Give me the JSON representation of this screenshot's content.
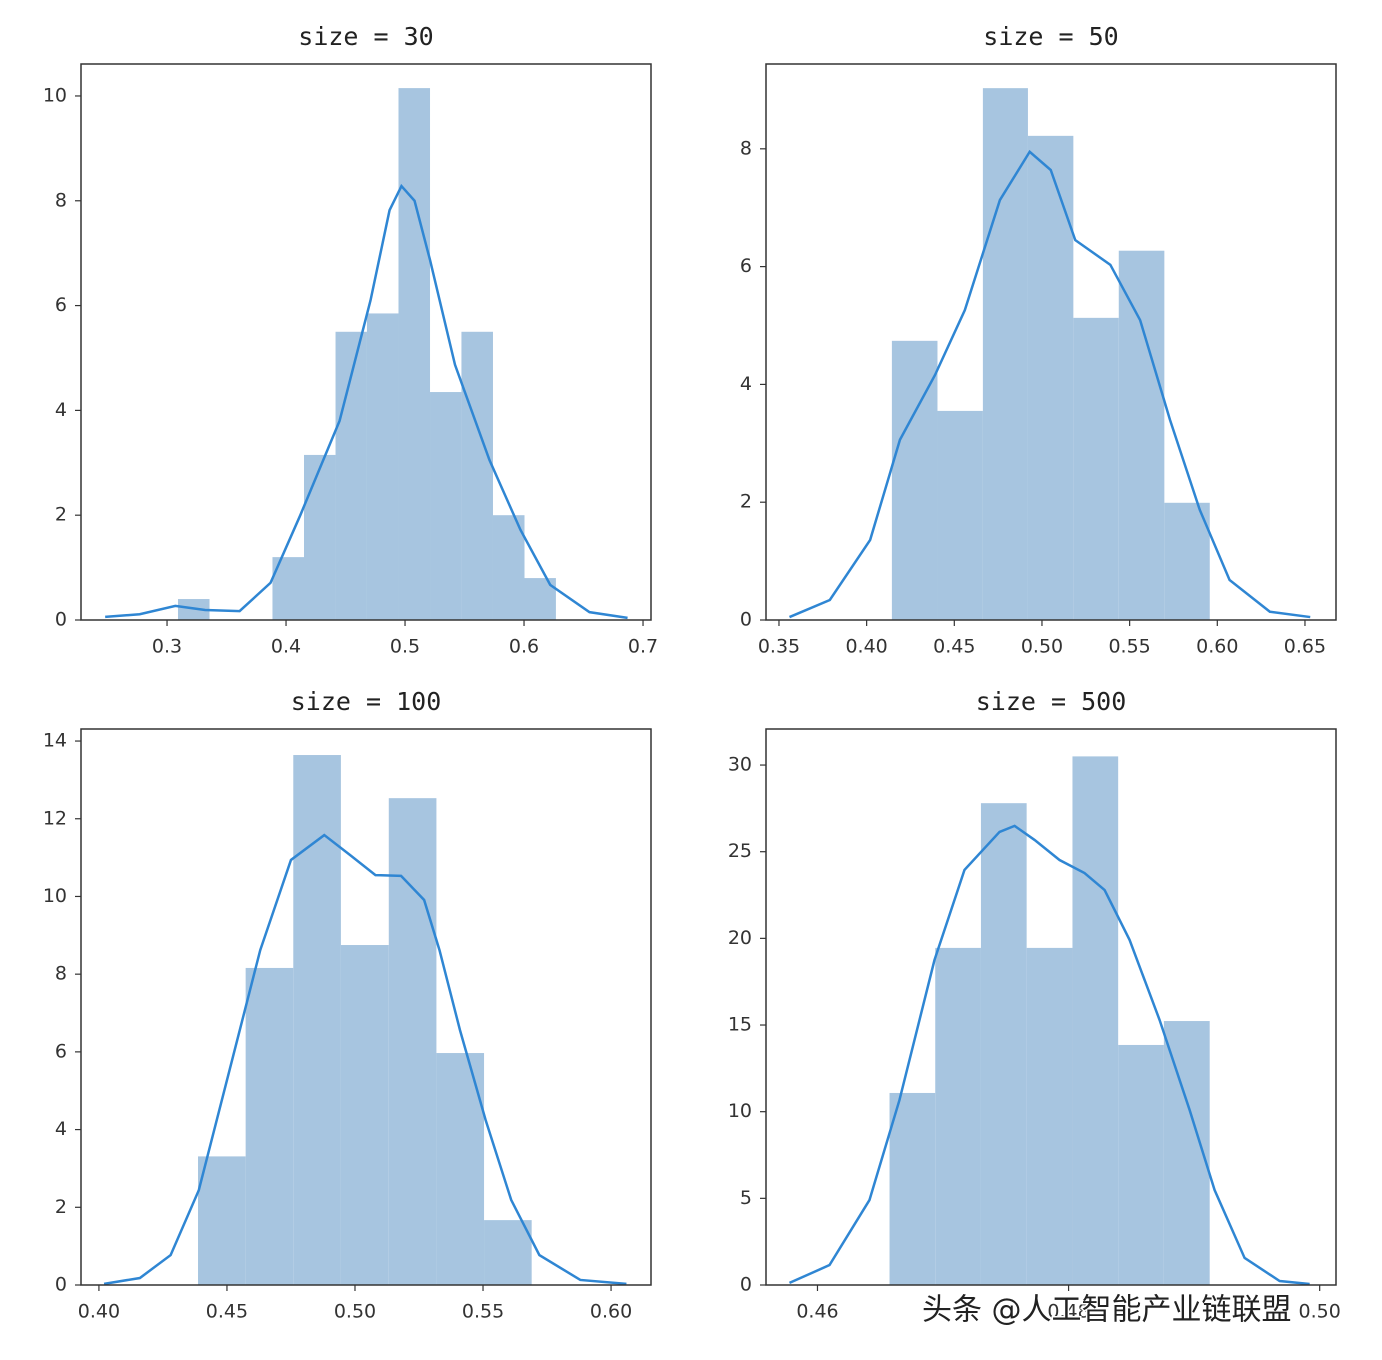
{
  "chart_data": [
    {
      "type": "histogram",
      "title": "size = 30",
      "color": "#a7c5e0",
      "bins": [
        0.3092,
        0.3357,
        0.3622,
        0.3886,
        0.4151,
        0.4416,
        0.468,
        0.4945,
        0.521,
        0.5474,
        0.5739,
        0.6004,
        0.6268
      ],
      "values": [
        0.4,
        0,
        0,
        1.2,
        3.15,
        5.5,
        5.85,
        10.15,
        4.35,
        5.5,
        2.0,
        0.8
      ],
      "kde": {
        "color": "#2f86d3",
        "x": [
          0.248,
          0.277,
          0.307,
          0.332,
          0.361,
          0.387,
          0.412,
          0.445,
          0.471,
          0.487,
          0.497,
          0.508,
          0.521,
          0.542,
          0.571,
          0.597,
          0.622,
          0.655,
          0.687
        ],
        "values": [
          0.06,
          0.11,
          0.27,
          0.19,
          0.17,
          0.71,
          2.0,
          3.8,
          6.1,
          7.82,
          8.28,
          8.0,
          6.87,
          4.87,
          3.05,
          1.72,
          0.67,
          0.15,
          0.04
        ]
      },
      "xlim": [
        0.2277,
        0.7067
      ],
      "ylim": [
        0,
        10.61
      ],
      "xticks": [
        0.3,
        0.4,
        0.5,
        0.6,
        0.7
      ],
      "yticks": [
        0,
        2,
        4,
        6,
        8,
        10
      ]
    },
    {
      "type": "histogram",
      "title": "size = 50",
      "color": "#a7c5e0",
      "bins": [
        0.4144,
        0.4404,
        0.4663,
        0.492,
        0.5179,
        0.5438,
        0.5698,
        0.5957
      ],
      "values": [
        4.74,
        3.55,
        9.03,
        8.22,
        5.13,
        6.27,
        1.99
      ],
      "kde": {
        "color": "#2f86d3",
        "x": [
          0.356,
          0.379,
          0.402,
          0.419,
          0.439,
          0.456,
          0.476,
          0.493,
          0.505,
          0.519,
          0.539,
          0.556,
          0.573,
          0.59,
          0.607,
          0.63,
          0.653
        ],
        "values": [
          0.05,
          0.34,
          1.36,
          3.06,
          4.16,
          5.26,
          7.13,
          7.95,
          7.64,
          6.45,
          6.03,
          5.09,
          3.4,
          1.87,
          0.68,
          0.14,
          0.05
        ]
      },
      "xlim": [
        0.3426,
        0.6677
      ],
      "ylim": [
        0,
        9.44
      ],
      "xticks": [
        0.35,
        {
          "value": 0.4,
          "label": "0.40"
        },
        0.45,
        {
          "value": 0.5,
          "label": "0.50"
        },
        0.55,
        {
          "value": 0.6,
          "label": "0.60"
        },
        0.65
      ],
      "yticks": [
        0,
        2,
        4,
        6,
        8
      ]
    },
    {
      "type": "histogram",
      "title": "size = 100",
      "color": "#a7c5e0",
      "bins": [
        0.4387,
        0.4573,
        0.4759,
        0.4945,
        0.5132,
        0.5318,
        0.5504,
        0.569
      ],
      "values": [
        3.31,
        8.16,
        13.64,
        8.75,
        12.53,
        5.97,
        1.67
      ],
      "kde": {
        "color": "#2f86d3",
        "x": [
          0.402,
          0.416,
          0.428,
          0.439,
          0.451,
          0.463,
          0.475,
          0.488,
          0.498,
          0.508,
          0.518,
          0.527,
          0.533,
          0.541,
          0.551,
          0.561,
          0.572,
          0.588,
          0.606
        ],
        "values": [
          0.03,
          0.18,
          0.77,
          2.44,
          5.53,
          8.62,
          10.94,
          11.58,
          11.07,
          10.55,
          10.53,
          9.91,
          8.62,
          6.56,
          4.25,
          2.19,
          0.77,
          0.13,
          0.03
        ]
      },
      "xlim": [
        0.393,
        0.6156
      ],
      "ylim": [
        0,
        14.31
      ],
      "xticks": [
        {
          "value": 0.4,
          "label": "0.40"
        },
        0.45,
        {
          "value": 0.5,
          "label": "0.50"
        },
        0.55,
        {
          "value": 0.6,
          "label": "0.60"
        }
      ],
      "yticks": [
        0,
        2,
        4,
        6,
        8,
        10,
        12,
        14
      ]
    },
    {
      "type": "histogram",
      "title": "size = 500",
      "color": "#a7c5e0",
      "bins": [
        0.46574,
        0.46938,
        0.47302,
        0.47666,
        0.48031,
        0.48395,
        0.48759,
        0.49124
      ],
      "values": [
        11.08,
        19.45,
        27.8,
        19.45,
        30.5,
        13.85,
        15.23
      ],
      "kde": {
        "color": "#2f86d3",
        "x": [
          0.45777,
          0.46096,
          0.46414,
          0.46653,
          0.46932,
          0.47171,
          0.4745,
          0.4757,
          0.47729,
          0.47928,
          0.48127,
          0.48287,
          0.48486,
          0.48725,
          0.48964,
          0.49163,
          0.49402,
          0.49681,
          0.4992
        ],
        "values": [
          0.12,
          1.15,
          4.9,
          10.67,
          18.75,
          23.95,
          26.14,
          26.49,
          25.68,
          24.52,
          23.77,
          22.79,
          19.91,
          15.29,
          10.1,
          5.48,
          1.56,
          0.23,
          0.06
        ]
      },
      "xlim": [
        0.4559,
        0.5013
      ],
      "ylim": [
        0,
        32.08
      ],
      "xticks": [
        0.46,
        0.48,
        {
          "value": 0.5,
          "label": "0.50"
        }
      ],
      "yticks": [
        0,
        5,
        10,
        15,
        20,
        25,
        30
      ]
    }
  ],
  "watermark": "头条 @人工智能产业链联盟"
}
